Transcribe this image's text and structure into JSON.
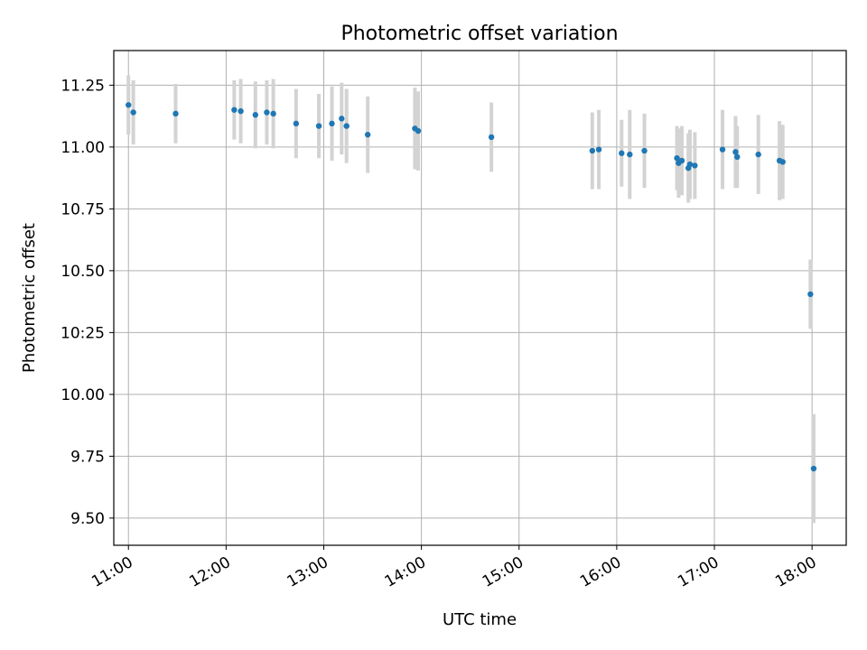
{
  "chart_data": {
    "type": "scatter",
    "title": "Photometric offset variation",
    "xlabel": "UTC time",
    "ylabel": "Photometric offset",
    "grid": true,
    "xlim": [
      "10:51",
      "18:21"
    ],
    "ylim": [
      9.39,
      11.39
    ],
    "x_ticks": [
      "11:00",
      "12:00",
      "13:00",
      "14:00",
      "15:00",
      "16:00",
      "17:00",
      "18:00"
    ],
    "y_ticks": [
      "9.50",
      "9.75",
      "10.00",
      "10:25",
      "10.50",
      "10.75",
      "11.00",
      "11.25"
    ],
    "colors": {
      "points": "#1f77b4",
      "errorbars": "#d3d3d3",
      "grid": "#b0b0b0"
    },
    "series": [
      {
        "points": [
          {
            "x": "11:00",
            "y": 11.17,
            "err": 0.12
          },
          {
            "x": "11:03",
            "y": 11.14,
            "err": 0.13
          },
          {
            "x": "11:29",
            "y": 11.135,
            "err": 0.12
          },
          {
            "x": "12:05",
            "y": 11.15,
            "err": 0.12
          },
          {
            "x": "12:09",
            "y": 11.145,
            "err": 0.13
          },
          {
            "x": "12:18",
            "y": 11.13,
            "err": 0.135
          },
          {
            "x": "12:25",
            "y": 11.14,
            "err": 0.13
          },
          {
            "x": "12:29",
            "y": 11.135,
            "err": 0.14
          },
          {
            "x": "12:43",
            "y": 11.095,
            "err": 0.14
          },
          {
            "x": "12:57",
            "y": 11.085,
            "err": 0.13
          },
          {
            "x": "13:05",
            "y": 11.095,
            "err": 0.15
          },
          {
            "x": "13:11",
            "y": 11.115,
            "err": 0.145
          },
          {
            "x": "13:14",
            "y": 11.085,
            "err": 0.15
          },
          {
            "x": "13:27",
            "y": 11.05,
            "err": 0.155
          },
          {
            "x": "13:56",
            "y": 11.075,
            "err": 0.165
          },
          {
            "x": "13:58",
            "y": 11.065,
            "err": 0.16
          },
          {
            "x": "14:43",
            "y": 11.04,
            "err": 0.14
          },
          {
            "x": "15:45",
            "y": 10.985,
            "err": 0.155
          },
          {
            "x": "15:49",
            "y": 10.99,
            "err": 0.16
          },
          {
            "x": "16:03",
            "y": 10.975,
            "err": 0.135
          },
          {
            "x": "16:08",
            "y": 10.97,
            "err": 0.18
          },
          {
            "x": "16:17",
            "y": 10.985,
            "err": 0.15
          },
          {
            "x": "16:37",
            "y": 10.955,
            "err": 0.13
          },
          {
            "x": "16:38",
            "y": 10.935,
            "err": 0.14
          },
          {
            "x": "16:40",
            "y": 10.945,
            "err": 0.14
          },
          {
            "x": "16:44",
            "y": 10.915,
            "err": 0.14
          },
          {
            "x": "16:45",
            "y": 10.93,
            "err": 0.14
          },
          {
            "x": "16:48",
            "y": 10.925,
            "err": 0.135
          },
          {
            "x": "17:05",
            "y": 10.99,
            "err": 0.16
          },
          {
            "x": "17:13",
            "y": 10.98,
            "err": 0.145
          },
          {
            "x": "17:14",
            "y": 10.96,
            "err": 0.125
          },
          {
            "x": "17:27",
            "y": 10.97,
            "err": 0.16
          },
          {
            "x": "17:40",
            "y": 10.945,
            "err": 0.16
          },
          {
            "x": "17:42",
            "y": 10.94,
            "err": 0.15
          },
          {
            "x": "17:59",
            "y": 10.405,
            "err": 0.14
          },
          {
            "x": "18:01",
            "y": 9.7,
            "err": 0.22
          }
        ]
      }
    ]
  }
}
